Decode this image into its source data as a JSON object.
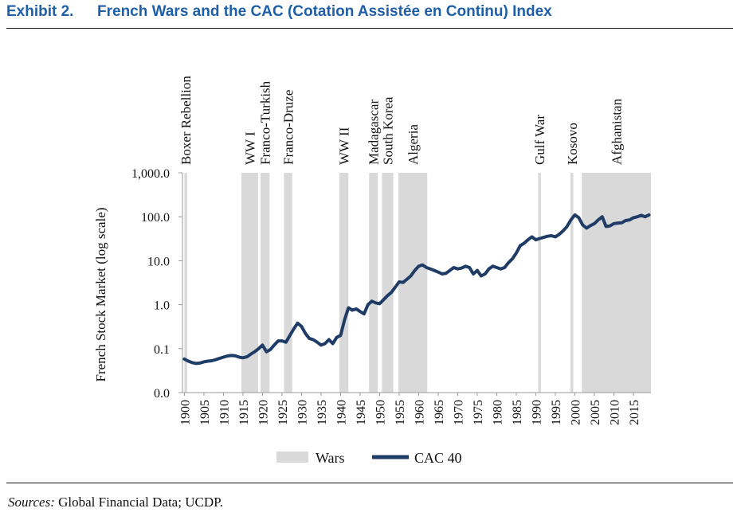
{
  "header": {
    "exhibit": "Exhibit 2.",
    "title": "French Wars and the CAC (Cotation Assistée en Continu) Index"
  },
  "footer": {
    "sources_lead": "Sources:",
    "sources_text": " Global Financial Data; UCDP."
  },
  "colors": {
    "title": "#1f5fa8",
    "line": "#1f3c66",
    "wars": "#d9d9d9"
  },
  "chart_data": {
    "type": "line",
    "ylabel": "French Stock Market (log scale)",
    "xlabel": "",
    "y_scale": "log",
    "ylim": [
      0.01,
      1000
    ],
    "y_ticks": [
      0.01,
      0.1,
      1,
      10,
      100,
      1000
    ],
    "y_tick_labels": [
      "0.0",
      "0.1",
      "1.0",
      "10.0",
      "100.0",
      "1,000.0"
    ],
    "xlim": [
      1899.5,
      2019.5
    ],
    "x_ticks": [
      1900,
      1905,
      1910,
      1915,
      1920,
      1925,
      1930,
      1935,
      1940,
      1945,
      1950,
      1955,
      1960,
      1965,
      1970,
      1975,
      1980,
      1985,
      1990,
      1995,
      2000,
      2005,
      2010,
      2015
    ],
    "grid": false,
    "legend": {
      "position": "bottom",
      "items": [
        "Wars",
        "CAC 40"
      ]
    },
    "wars": [
      {
        "name": "Boxer Rebellion",
        "start": 1900.0,
        "end": 1900.7
      },
      {
        "name": "WW I",
        "start": 1914.6,
        "end": 1918.9
      },
      {
        "name": "Franco-Turkish",
        "start": 1919.5,
        "end": 1921.8
      },
      {
        "name": "Franco-Druze",
        "start": 1925.5,
        "end": 1927.6
      },
      {
        "name": "WW II",
        "start": 1939.7,
        "end": 1942.0
      },
      {
        "name": "Madagascar",
        "start": 1947.3,
        "end": 1949.5
      },
      {
        "name": "South Korea",
        "start": 1950.6,
        "end": 1953.5
      },
      {
        "name": "Algeria",
        "start": 1954.8,
        "end": 1962.2
      },
      {
        "name": "Gulf War",
        "start": 1990.6,
        "end": 1991.3
      },
      {
        "name": "Kosovo",
        "start": 1998.9,
        "end": 1999.6
      },
      {
        "name": "Afghanistan",
        "start": 2001.8,
        "end": 2019.5
      }
    ],
    "series": [
      {
        "name": "CAC 40",
        "x": [
          1900,
          1901,
          1902,
          1903,
          1904,
          1905,
          1906,
          1907,
          1908,
          1909,
          1910,
          1911,
          1912,
          1913,
          1914,
          1915,
          1916,
          1917,
          1918,
          1919,
          1920,
          1921,
          1922,
          1923,
          1924,
          1925,
          1926,
          1927,
          1928,
          1929,
          1930,
          1931,
          1932,
          1933,
          1934,
          1935,
          1936,
          1937,
          1938,
          1939,
          1940,
          1941,
          1942,
          1943,
          1944,
          1945,
          1946,
          1947,
          1948,
          1949,
          1950,
          1951,
          1952,
          1953,
          1954,
          1955,
          1956,
          1957,
          1958,
          1959,
          1960,
          1961,
          1962,
          1963,
          1964,
          1965,
          1966,
          1967,
          1968,
          1969,
          1970,
          1971,
          1972,
          1973,
          1974,
          1975,
          1976,
          1977,
          1978,
          1979,
          1980,
          1981,
          1982,
          1983,
          1984,
          1985,
          1986,
          1987,
          1988,
          1989,
          1990,
          1991,
          1992,
          1993,
          1994,
          1995,
          1996,
          1997,
          1998,
          1999,
          2000,
          2001,
          2002,
          2003,
          2004,
          2005,
          2006,
          2007,
          2008,
          2009,
          2010,
          2011,
          2012,
          2013,
          2014,
          2015,
          2016,
          2017,
          2018,
          2019
        ],
        "values": [
          0.058,
          0.052,
          0.048,
          0.046,
          0.047,
          0.05,
          0.052,
          0.053,
          0.056,
          0.06,
          0.064,
          0.068,
          0.07,
          0.069,
          0.064,
          0.062,
          0.065,
          0.075,
          0.085,
          0.1,
          0.12,
          0.085,
          0.095,
          0.12,
          0.15,
          0.15,
          0.14,
          0.2,
          0.28,
          0.38,
          0.32,
          0.22,
          0.17,
          0.16,
          0.14,
          0.12,
          0.13,
          0.16,
          0.13,
          0.18,
          0.2,
          0.45,
          0.85,
          0.75,
          0.8,
          0.7,
          0.62,
          1.0,
          1.2,
          1.1,
          1.05,
          1.3,
          1.6,
          1.9,
          2.5,
          3.3,
          3.2,
          3.8,
          4.5,
          6.0,
          7.5,
          8.0,
          7.0,
          6.5,
          6.0,
          5.5,
          5.0,
          5.2,
          6.0,
          7.0,
          6.5,
          6.8,
          7.5,
          7.0,
          5.0,
          6.0,
          4.5,
          5.0,
          6.5,
          7.5,
          7.0,
          6.5,
          7.0,
          9.0,
          11,
          15,
          22,
          25,
          30,
          35,
          30,
          32,
          34,
          36,
          37,
          35,
          40,
          48,
          60,
          85,
          110,
          95,
          65,
          55,
          63,
          70,
          85,
          100,
          60,
          62,
          70,
          72,
          73,
          82,
          85,
          95,
          100,
          108,
          100,
          110
        ]
      }
    ]
  }
}
